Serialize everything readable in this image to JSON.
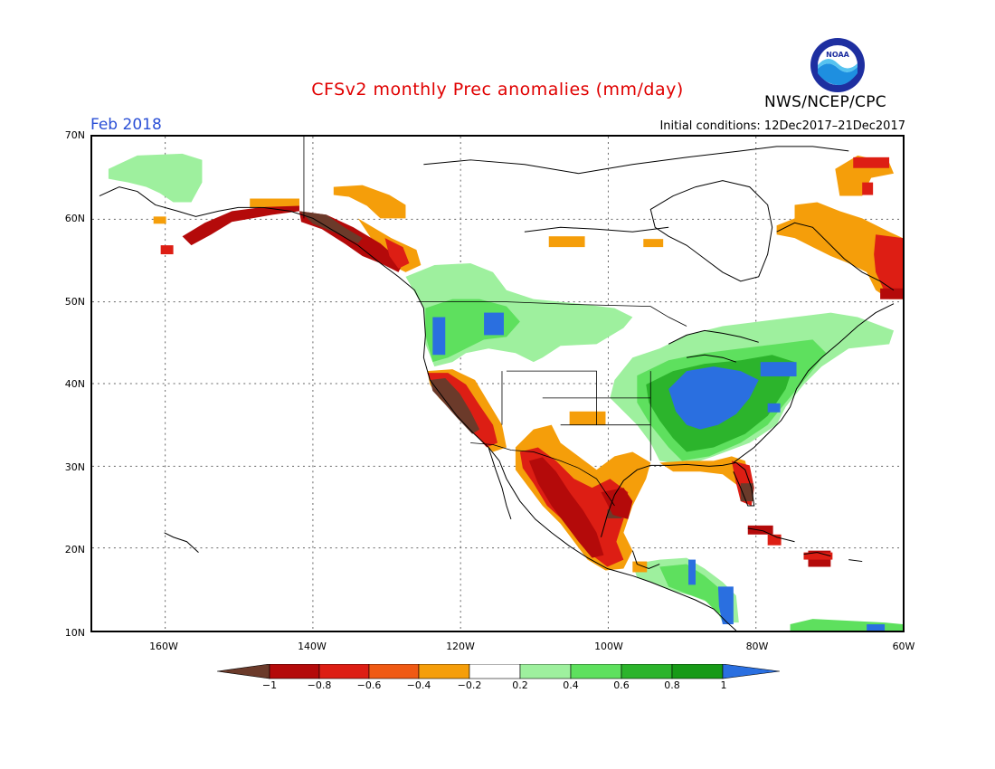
{
  "title": "CFSv2 monthly Prec anomalies (mm/day)",
  "period": "Feb 2018",
  "initial_conditions": "Initial conditions: 12Dec2017–21Dec2017",
  "agency": "NWS/NCEP/CPC",
  "logo_text": "NOAA",
  "lat_labels": [
    "70N",
    "60N",
    "50N",
    "40N",
    "30N",
    "20N",
    "10N"
  ],
  "lon_labels": [
    "160W",
    "140W",
    "120W",
    "100W",
    "80W",
    "60W"
  ],
  "colorbar": {
    "labels": [
      "−1",
      "−0.8",
      "−0.6",
      "−0.4",
      "−0.2",
      "0.2",
      "0.4",
      "0.6",
      "0.8",
      "1"
    ],
    "colors": [
      "#6b3a2a",
      "#b40a0a",
      "#dd1e14",
      "#f05a14",
      "#f59e0a",
      "#ffffff",
      "#9ef09e",
      "#5ee05e",
      "#2cb42c",
      "#179a17",
      "#2a6fe0"
    ]
  },
  "legend_colors": {
    "brown": "#6b3a2a",
    "darkred": "#b40a0a",
    "red": "#dd1e14",
    "redorange": "#f05a14",
    "orange": "#f59e0a",
    "lightgreen": "#9ef09e",
    "green": "#5ee05e",
    "midgreen": "#2cb42c",
    "darkgreen": "#179a17",
    "blue": "#2a6fe0"
  }
}
